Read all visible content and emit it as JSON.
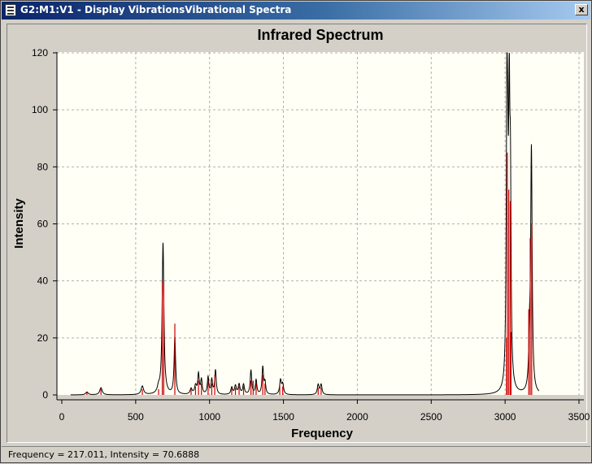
{
  "window": {
    "title": "G2:M1:V1 - Display VibrationsVibrational Spectra",
    "close_glyph": "x"
  },
  "status_bar": {
    "text": "Frequency = 217.011,  Intensity = 70.6888"
  },
  "colors": {
    "spectrum_line": "#000000",
    "stick_line": "#cc0000",
    "plot_background": "#fffff5",
    "grid": "#b0b0b0"
  },
  "chart_data": {
    "type": "line",
    "title": "Infrared Spectrum",
    "xlabel": "Frequency",
    "ylabel": "Intensity",
    "xlim": [
      0,
      3500
    ],
    "ylim": [
      0,
      120
    ],
    "x_ticks": [
      0,
      500,
      1000,
      1500,
      2000,
      2500,
      3000,
      3500
    ],
    "y_ticks": [
      0,
      20,
      40,
      60,
      80,
      100,
      120
    ],
    "grid": true,
    "spectrum_range": [
      60,
      3230
    ],
    "sticks": [
      {
        "x": 170,
        "y": 1.0
      },
      {
        "x": 265,
        "y": 2.0
      },
      {
        "x": 545,
        "y": 2.0
      },
      {
        "x": 655,
        "y": 2.0
      },
      {
        "x": 680,
        "y": 40.0
      },
      {
        "x": 690,
        "y": 38.0
      },
      {
        "x": 765,
        "y": 25.0
      },
      {
        "x": 875,
        "y": 2.0
      },
      {
        "x": 905,
        "y": 3.0
      },
      {
        "x": 925,
        "y": 5.0
      },
      {
        "x": 945,
        "y": 4.0
      },
      {
        "x": 990,
        "y": 5.0
      },
      {
        "x": 1015,
        "y": 4.0
      },
      {
        "x": 1035,
        "y": 7.0
      },
      {
        "x": 1150,
        "y": 2.5
      },
      {
        "x": 1175,
        "y": 2.5
      },
      {
        "x": 1200,
        "y": 3.0
      },
      {
        "x": 1230,
        "y": 3.0
      },
      {
        "x": 1280,
        "y": 5.0
      },
      {
        "x": 1295,
        "y": 5.0
      },
      {
        "x": 1315,
        "y": 4.0
      },
      {
        "x": 1360,
        "y": 7.0
      },
      {
        "x": 1375,
        "y": 4.0
      },
      {
        "x": 1475,
        "y": 3.5
      },
      {
        "x": 1495,
        "y": 3.0
      },
      {
        "x": 1735,
        "y": 2.5
      },
      {
        "x": 1755,
        "y": 2.5
      },
      {
        "x": 3010,
        "y": 20.0
      },
      {
        "x": 3015,
        "y": 85.0
      },
      {
        "x": 3025,
        "y": 72.0
      },
      {
        "x": 3035,
        "y": 68.0
      },
      {
        "x": 3040,
        "y": 22.0
      },
      {
        "x": 3160,
        "y": 30.0
      },
      {
        "x": 3170,
        "y": 55.0
      },
      {
        "x": 3180,
        "y": 60.0
      }
    ],
    "peaks": [
      {
        "x": 170,
        "y": 1.0,
        "w": 10
      },
      {
        "x": 265,
        "y": 2.5,
        "w": 10
      },
      {
        "x": 545,
        "y": 3.0,
        "w": 10
      },
      {
        "x": 655,
        "y": 2.0,
        "w": 10
      },
      {
        "x": 685,
        "y": 53.0,
        "w": 7
      },
      {
        "x": 765,
        "y": 20.0,
        "w": 6
      },
      {
        "x": 875,
        "y": 2.0,
        "w": 8
      },
      {
        "x": 905,
        "y": 3.0,
        "w": 8
      },
      {
        "x": 925,
        "y": 7.0,
        "w": 6
      },
      {
        "x": 945,
        "y": 5.0,
        "w": 6
      },
      {
        "x": 990,
        "y": 6.0,
        "w": 6
      },
      {
        "x": 1015,
        "y": 5.0,
        "w": 6
      },
      {
        "x": 1040,
        "y": 8.5,
        "w": 6
      },
      {
        "x": 1150,
        "y": 2.5,
        "w": 7
      },
      {
        "x": 1175,
        "y": 3.0,
        "w": 7
      },
      {
        "x": 1200,
        "y": 3.5,
        "w": 7
      },
      {
        "x": 1230,
        "y": 3.5,
        "w": 7
      },
      {
        "x": 1280,
        "y": 8.5,
        "w": 6
      },
      {
        "x": 1315,
        "y": 5.0,
        "w": 6
      },
      {
        "x": 1360,
        "y": 9.5,
        "w": 6
      },
      {
        "x": 1375,
        "y": 4.0,
        "w": 6
      },
      {
        "x": 1480,
        "y": 5.0,
        "w": 7
      },
      {
        "x": 1495,
        "y": 3.5,
        "w": 7
      },
      {
        "x": 1735,
        "y": 3.5,
        "w": 7
      },
      {
        "x": 1755,
        "y": 3.5,
        "w": 7
      },
      {
        "x": 3012,
        "y": 90.0,
        "w": 5
      },
      {
        "x": 3018,
        "y": 50.0,
        "w": 5
      },
      {
        "x": 3028,
        "y": 86.0,
        "w": 5
      },
      {
        "x": 3036,
        "y": 62.0,
        "w": 5
      },
      {
        "x": 3165,
        "y": 15.0,
        "w": 6
      },
      {
        "x": 3178,
        "y": 85.0,
        "w": 6
      }
    ]
  }
}
